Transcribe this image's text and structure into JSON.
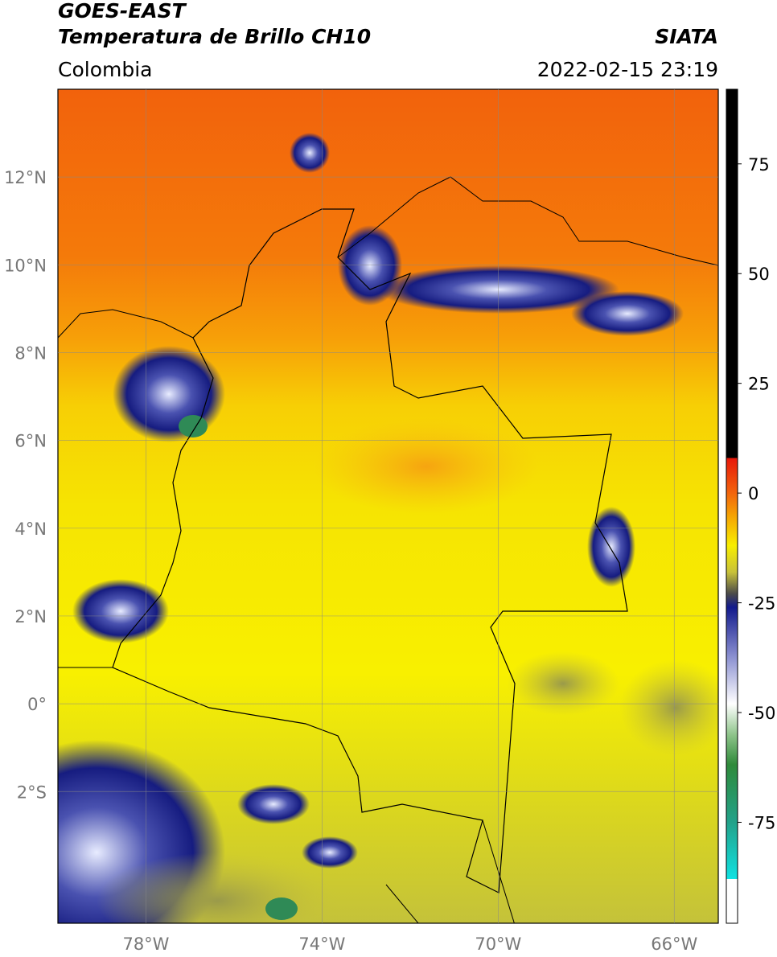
{
  "header": {
    "title": "GOES-EAST",
    "subtitle": "Temperatura de Brillo CH10",
    "source": "SIATA",
    "region": "Colombia",
    "timestamp": "2022-02-15 23:19"
  },
  "map": {
    "type": "map",
    "xlim": [
      -80,
      -65
    ],
    "ylim": [
      -5,
      14
    ],
    "xticks": [
      {
        "value": -78,
        "label": "78°W"
      },
      {
        "value": -74,
        "label": "74°W"
      },
      {
        "value": -70,
        "label": "70°W"
      },
      {
        "value": -66,
        "label": "66°W"
      }
    ],
    "yticks": [
      {
        "value": 12,
        "label": "12°N"
      },
      {
        "value": 10,
        "label": "10°N"
      },
      {
        "value": 8,
        "label": "8°N"
      },
      {
        "value": 6,
        "label": "6°N"
      },
      {
        "value": 4,
        "label": "4°N"
      },
      {
        "value": 2,
        "label": "2°N"
      },
      {
        "value": 0,
        "label": "0°"
      },
      {
        "value": -2,
        "label": "2°S"
      }
    ],
    "grid": true
  },
  "colorbar": {
    "lim": [
      -98,
      92
    ],
    "ticks": [
      75,
      50,
      25,
      0,
      -25,
      -50,
      -75
    ]
  }
}
